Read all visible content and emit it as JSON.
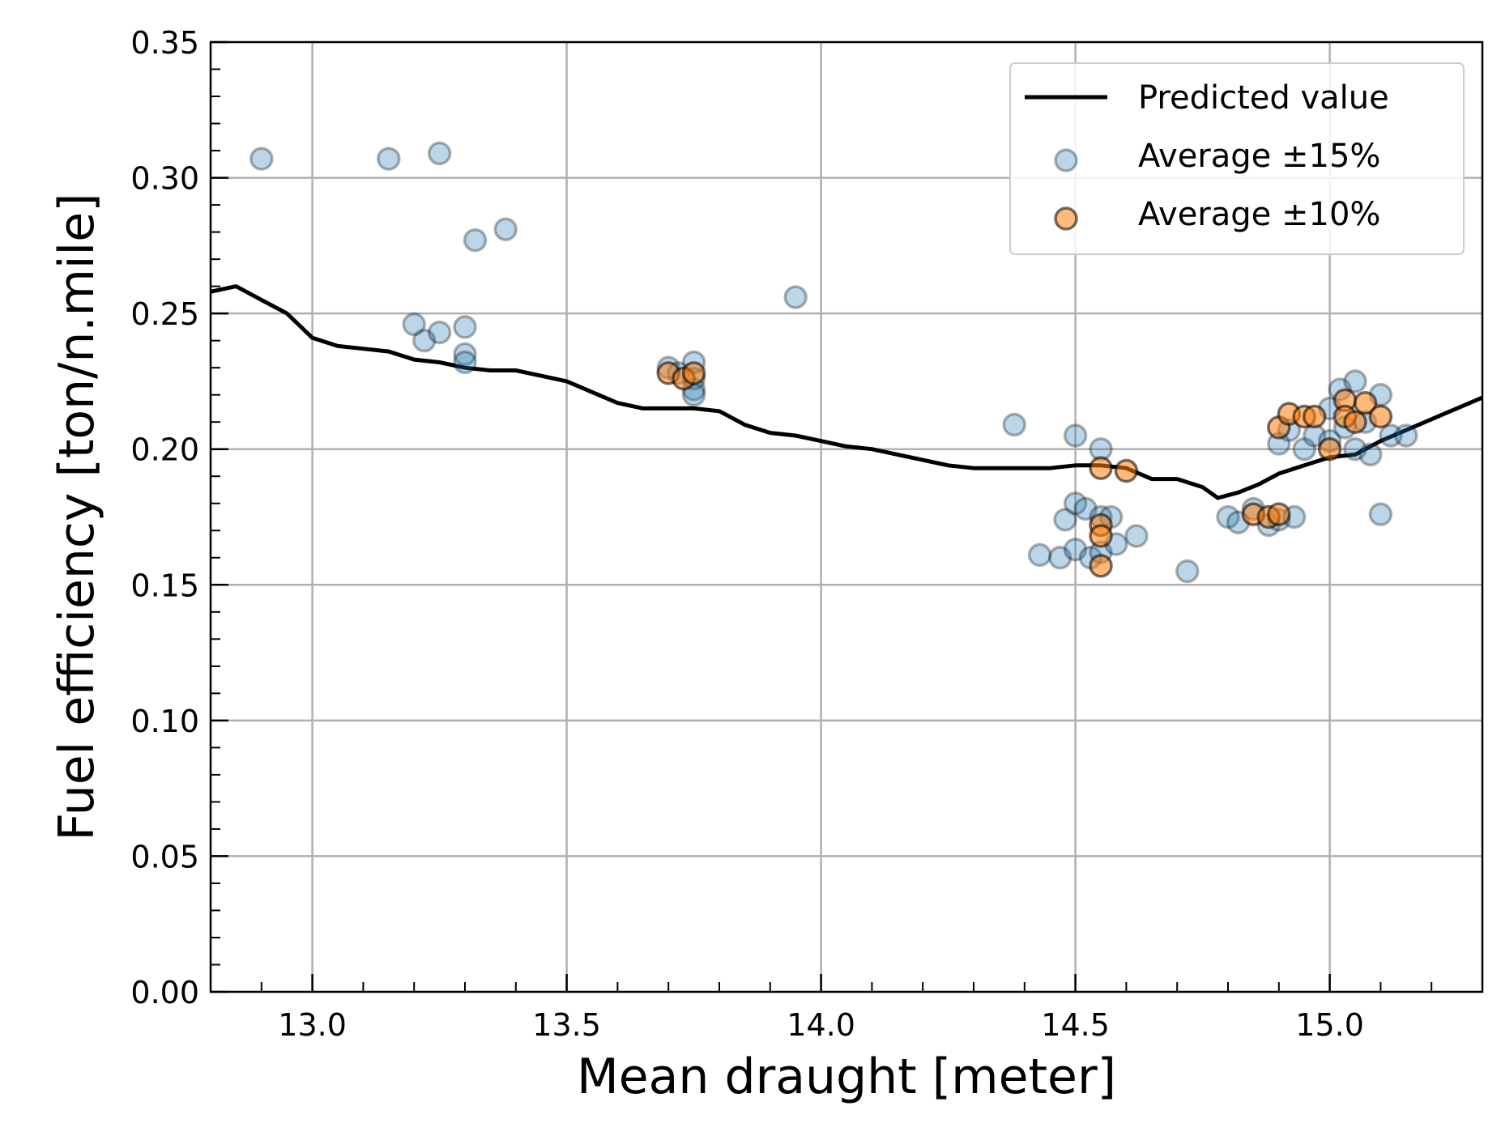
{
  "chart_data": {
    "type": "scatter",
    "title": "",
    "xlabel": "Mean draught [meter]",
    "ylabel": "Fuel efficiency [ton/n.mile]",
    "xlim": [
      12.8,
      15.3
    ],
    "ylim": [
      0.0,
      0.35
    ],
    "grid": true,
    "legend_position": "top-right",
    "x_ticks": [
      13.0,
      13.5,
      14.0,
      14.5,
      15.0
    ],
    "x_tick_labels": [
      "13.0",
      "13.5",
      "14.0",
      "14.5",
      "15.0"
    ],
    "y_ticks": [
      0.0,
      0.05,
      0.1,
      0.15,
      0.2,
      0.25,
      0.3,
      0.35
    ],
    "y_tick_labels": [
      "0.00",
      "0.05",
      "0.10",
      "0.15",
      "0.20",
      "0.25",
      "0.30",
      "0.35"
    ],
    "series": [
      {
        "name": "Predicted value",
        "kind": "line",
        "color": "#000000",
        "x": [
          12.8,
          12.85,
          12.9,
          12.95,
          13.0,
          13.05,
          13.1,
          13.15,
          13.2,
          13.25,
          13.3,
          13.35,
          13.4,
          13.45,
          13.5,
          13.55,
          13.6,
          13.65,
          13.7,
          13.75,
          13.8,
          13.85,
          13.9,
          13.95,
          14.0,
          14.05,
          14.1,
          14.15,
          14.2,
          14.25,
          14.3,
          14.35,
          14.4,
          14.45,
          14.5,
          14.55,
          14.6,
          14.65,
          14.7,
          14.75,
          14.78,
          14.82,
          14.86,
          14.9,
          14.95,
          15.0,
          15.05,
          15.1,
          15.15,
          15.2,
          15.25,
          15.3
        ],
        "y": [
          0.258,
          0.26,
          0.255,
          0.25,
          0.241,
          0.238,
          0.237,
          0.236,
          0.233,
          0.232,
          0.23,
          0.229,
          0.229,
          0.227,
          0.225,
          0.221,
          0.217,
          0.215,
          0.215,
          0.215,
          0.214,
          0.209,
          0.206,
          0.205,
          0.203,
          0.201,
          0.2,
          0.198,
          0.196,
          0.194,
          0.193,
          0.193,
          0.193,
          0.193,
          0.194,
          0.194,
          0.193,
          0.189,
          0.189,
          0.186,
          0.182,
          0.184,
          0.187,
          0.191,
          0.194,
          0.197,
          0.198,
          0.203,
          0.207,
          0.211,
          0.215,
          0.219
        ]
      },
      {
        "name": "Average ±15%",
        "kind": "scatter",
        "color": "#1f77b4",
        "x": [
          12.9,
          13.15,
          13.25,
          13.32,
          13.38,
          13.2,
          13.22,
          13.25,
          13.3,
          13.3,
          13.3,
          13.7,
          13.72,
          13.75,
          13.75,
          13.75,
          13.75,
          13.95,
          14.38,
          14.43,
          14.47,
          14.48,
          14.5,
          14.5,
          14.5,
          14.52,
          14.53,
          14.55,
          14.55,
          14.57,
          14.55,
          14.58,
          14.62,
          14.72,
          14.8,
          14.82,
          14.85,
          14.88,
          14.9,
          14.93,
          14.9,
          14.92,
          14.95,
          14.97,
          15.0,
          15.0,
          15.02,
          15.03,
          15.05,
          15.05,
          15.07,
          15.08,
          15.1,
          15.12,
          15.15,
          15.1
        ],
        "y": [
          0.307,
          0.307,
          0.309,
          0.277,
          0.281,
          0.246,
          0.24,
          0.243,
          0.245,
          0.235,
          0.232,
          0.23,
          0.228,
          0.226,
          0.222,
          0.22,
          0.232,
          0.256,
          0.209,
          0.161,
          0.16,
          0.174,
          0.205,
          0.18,
          0.163,
          0.178,
          0.16,
          0.175,
          0.2,
          0.175,
          0.162,
          0.165,
          0.168,
          0.155,
          0.175,
          0.173,
          0.178,
          0.172,
          0.174,
          0.175,
          0.202,
          0.207,
          0.2,
          0.205,
          0.215,
          0.203,
          0.222,
          0.208,
          0.225,
          0.2,
          0.21,
          0.198,
          0.22,
          0.205,
          0.205,
          0.176
        ]
      },
      {
        "name": "Average ±10%",
        "kind": "scatter",
        "color": "#ff7f0e",
        "x": [
          13.7,
          13.73,
          13.75,
          14.55,
          14.55,
          14.55,
          14.55,
          14.6,
          14.85,
          14.88,
          14.9,
          14.9,
          14.92,
          14.95,
          14.97,
          15.0,
          15.03,
          15.03,
          15.05,
          15.07,
          15.1
        ],
        "y": [
          0.228,
          0.226,
          0.228,
          0.193,
          0.172,
          0.168,
          0.157,
          0.192,
          0.176,
          0.175,
          0.176,
          0.208,
          0.213,
          0.212,
          0.212,
          0.2,
          0.218,
          0.212,
          0.21,
          0.217,
          0.212
        ]
      }
    ]
  }
}
